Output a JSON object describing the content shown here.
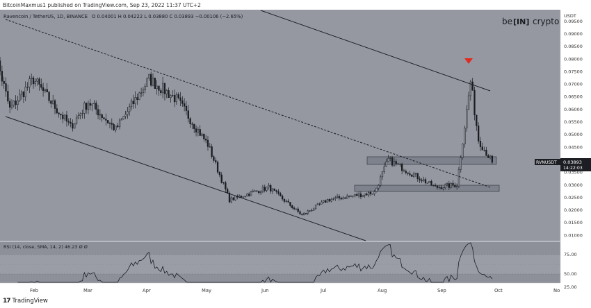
{
  "header": {
    "publisher_text": "BitcoinMaxmus1 published on TradingView.com, Sep 23, 2022 11:37 UTC+2"
  },
  "legend": {
    "symbol": "Ravencoin / TetherUS, 1D, BINANCE",
    "ohlc": "O 0.04001  H 0.04222  L 0.03880  C 0.03893  −0.00106 (−2.65%)"
  },
  "logo": {
    "left": "be",
    "mid": "[IN]",
    "right": "crypto"
  },
  "price_axis": {
    "currency": "USDT",
    "ticks": [
      "0.09500",
      "0.09000",
      "0.08500",
      "0.08000",
      "0.07500",
      "0.07000",
      "0.06500",
      "0.06000",
      "0.05500",
      "0.05000",
      "0.04500",
      "0.04000",
      "0.03500",
      "0.03000",
      "0.02500",
      "0.02000",
      "0.01500",
      "0.01000"
    ]
  },
  "price_label": {
    "symbol": "RVNUSDT",
    "price": "0.03893",
    "countdown": "14:22:03"
  },
  "rsi": {
    "label": "RSI (14, close, SMA, 14, 2)  46.23  Ø  Ø",
    "ticks": [
      "75.00",
      "50.00",
      "25.00"
    ]
  },
  "time_axis": {
    "months": [
      "Feb",
      "Mar",
      "Apr",
      "May",
      "Jun",
      "Jul",
      "Aug",
      "Sep",
      "Oct",
      "No"
    ]
  },
  "footer": {
    "brand_icon": "tradingview-logo-icon",
    "text": "TradingView"
  },
  "colors": {
    "panel": "#9598a1",
    "candle": "#1a1c21",
    "line": "#1c1e24",
    "zone": "#7e828c",
    "arrow": "#e0291f"
  },
  "chart_data": {
    "type": "candlestick",
    "title": "Ravencoin / TetherUS, 1D, BINANCE",
    "ylim": [
      0.008,
      0.097
    ],
    "monthly_path_close": [
      {
        "date": "2022-01-10",
        "close": 0.09
      },
      {
        "date": "2022-01-20",
        "close": 0.06
      },
      {
        "date": "2022-02-01",
        "close": 0.072
      },
      {
        "date": "2022-02-20",
        "close": 0.053
      },
      {
        "date": "2022-03-01",
        "close": 0.063
      },
      {
        "date": "2022-03-15",
        "close": 0.052
      },
      {
        "date": "2022-04-01",
        "close": 0.072
      },
      {
        "date": "2022-04-15",
        "close": 0.064
      },
      {
        "date": "2022-05-01",
        "close": 0.046
      },
      {
        "date": "2022-05-12",
        "close": 0.024
      },
      {
        "date": "2022-06-01",
        "close": 0.029
      },
      {
        "date": "2022-06-18",
        "close": 0.018
      },
      {
        "date": "2022-07-01",
        "close": 0.024
      },
      {
        "date": "2022-07-25",
        "close": 0.027
      },
      {
        "date": "2022-08-01",
        "close": 0.04
      },
      {
        "date": "2022-08-25",
        "close": 0.029
      },
      {
        "date": "2022-09-05",
        "close": 0.03
      },
      {
        "date": "2022-09-12",
        "close": 0.071
      },
      {
        "date": "2022-09-16",
        "close": 0.048
      },
      {
        "date": "2022-09-23",
        "close": 0.03893
      }
    ],
    "annotations": [
      {
        "type": "resistance_zone",
        "range": [
          0.0405,
          0.0435
        ],
        "from": "2022-07-30",
        "to": "2022-09-20"
      },
      {
        "type": "support_zone",
        "range": [
          0.0282,
          0.0302
        ],
        "from": "2022-07-22",
        "to": "2022-09-22"
      },
      {
        "type": "bearish_arrow",
        "date": "2022-09-12",
        "price": 0.08
      }
    ]
  }
}
